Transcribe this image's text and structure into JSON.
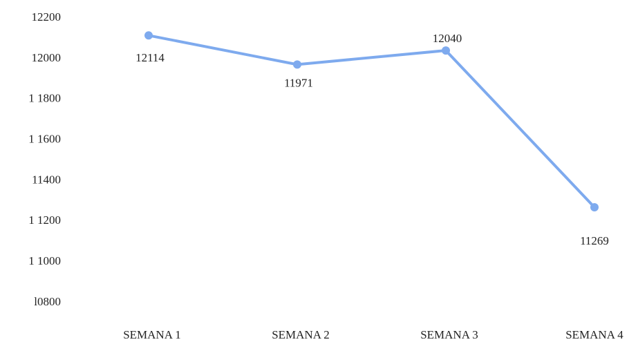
{
  "chart_data": {
    "type": "line",
    "categories": [
      "SEMANA 1",
      "SEMANA 2",
      "SEMANA 3",
      "SEMANA 4"
    ],
    "series": [
      {
        "name": "Semana",
        "color": "#7eaaee",
        "values": [
          12114,
          11971,
          12040,
          11269
        ]
      }
    ],
    "ylim": [
      10800,
      12200
    ],
    "yticks": [
      12200,
      12000,
      {
        "value": 11800,
        "label": "1 1800"
      },
      {
        "value": 11600,
        "label": "1 1600"
      },
      11400,
      {
        "value": 11200,
        "label": "1 1200"
      },
      {
        "value": 11000,
        "label": "1 1000"
      },
      {
        "value": 10800,
        "label": "l0800"
      }
    ],
    "grid": false
  }
}
